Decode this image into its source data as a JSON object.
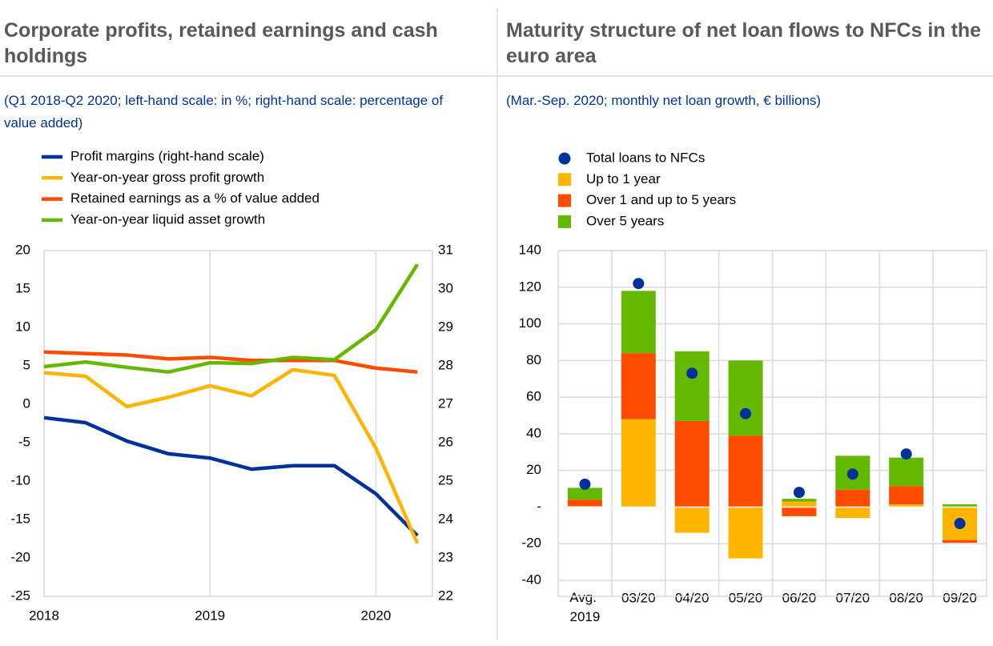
{
  "chart_data": [
    {
      "type": "line",
      "title": "Corporate profits, retained earnings and cash holdings",
      "subtitle": "(Q1 2018-Q2 2020; left-hand scale: in %; right-hand scale: percentage of value added)",
      "categories": [
        "2018",
        null,
        null,
        null,
        "2019",
        null,
        null,
        null,
        "2020",
        null
      ],
      "ylim": [
        -25,
        20
      ],
      "yticks": [
        -25,
        -20,
        -15,
        -10,
        -5,
        0,
        5,
        10,
        15,
        20
      ],
      "y2lim": [
        22,
        31
      ],
      "y2ticks": [
        22,
        23,
        24,
        25,
        26,
        27,
        28,
        29,
        30,
        31
      ],
      "grid": "x",
      "series": [
        {
          "name": "Profit margins (right-hand scale)",
          "color": "#003299",
          "axis": "y2",
          "values": [
            26.65,
            26.52,
            26.04,
            25.71,
            25.6,
            25.31,
            25.4,
            25.4,
            24.67,
            23.58
          ]
        },
        {
          "name": "Year-on-year gross profit growth",
          "color": "#ffb400",
          "values": [
            4.1,
            3.65,
            -0.3,
            0.9,
            2.4,
            1.1,
            4.5,
            3.75,
            -5.7,
            -18.1
          ]
        },
        {
          "name": "Retained earnings as a % of value added",
          "color": "#ff4b00",
          "values": [
            6.8,
            6.6,
            6.4,
            5.9,
            6.1,
            5.7,
            5.7,
            5.7,
            4.7,
            4.2
          ]
        },
        {
          "name": "Year-on-year liquid asset growth",
          "color": "#65b800",
          "values": [
            4.9,
            5.5,
            4.8,
            4.2,
            5.4,
            5.3,
            6.1,
            5.8,
            9.7,
            18.2
          ]
        }
      ]
    },
    {
      "type": "bar",
      "stacked": true,
      "title": "Maturity structure of net loan flows to NFCs in the euro area",
      "subtitle": "(Mar.-Sep. 2020; monthly net loan growth, € billions)",
      "categories": [
        "Avg. 2019",
        "03/20",
        "04/20",
        "05/20",
        "06/20",
        "07/20",
        "08/20",
        "09/20"
      ],
      "ylim": [
        -40,
        140
      ],
      "yticks": [
        -40,
        -20,
        {
          "value": 0,
          "label": "-"
        },
        20,
        40,
        60,
        80,
        100,
        120,
        140
      ],
      "grid": true,
      "series": [
        {
          "name": "Total loans to NFCs",
          "type": "scatter",
          "color": "#003299",
          "values": [
            12.5,
            122,
            73,
            51,
            8,
            18,
            29,
            -9
          ]
        },
        {
          "name": "Up to 1 year",
          "color": "#ffb400",
          "values": [
            0.5,
            48,
            -14,
            -28,
            3,
            -6,
            1.5,
            -18
          ]
        },
        {
          "name": "Over 1 and up to 5 years",
          "color": "#ff4b00",
          "values": [
            3.5,
            36,
            47,
            39,
            -5,
            9.5,
            10,
            -1.5
          ]
        },
        {
          "name": "Over 5 years",
          "color": "#65b800",
          "values": [
            6.5,
            34,
            38,
            41,
            1.5,
            18.5,
            15.5,
            1.5
          ]
        }
      ]
    }
  ]
}
